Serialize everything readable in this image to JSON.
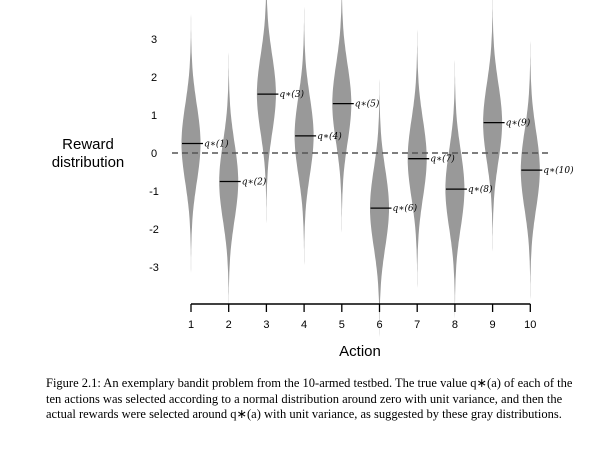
{
  "chart_data": {
    "type": "violin",
    "xlabel": "Action",
    "ylabel_line1": "Reward",
    "ylabel_line2": "distribution",
    "categories": [
      "1",
      "2",
      "3",
      "4",
      "5",
      "6",
      "7",
      "8",
      "9",
      "10"
    ],
    "q_values": [
      0.25,
      -0.75,
      1.55,
      0.45,
      1.3,
      -1.45,
      -0.15,
      -0.95,
      0.8,
      -0.45
    ],
    "q_labels": [
      "q∗(1)",
      "q∗(2)",
      "q∗(3)",
      "q∗(4)",
      "q∗(5)",
      "q∗(6)",
      "q∗(7)",
      "q∗(8)",
      "q∗(9)",
      "q∗(10)"
    ],
    "yticks": [
      -3,
      -2,
      -1,
      0,
      1,
      2,
      3
    ],
    "ylim": [
      -4,
      4
    ],
    "reference_line": 0,
    "distribution": "normal, unit variance",
    "colors": {
      "violin": "#999999",
      "mean_line": "#000000",
      "zero_line": "#555555"
    }
  },
  "caption": "Figure 2.1: An exemplary bandit problem from the 10-armed testbed. The true value q∗(a) of each of the ten actions was selected according to a normal distribution around zero with unit variance, and then the actual rewards were selected around q∗(a) with unit variance, as suggested by these gray distributions."
}
